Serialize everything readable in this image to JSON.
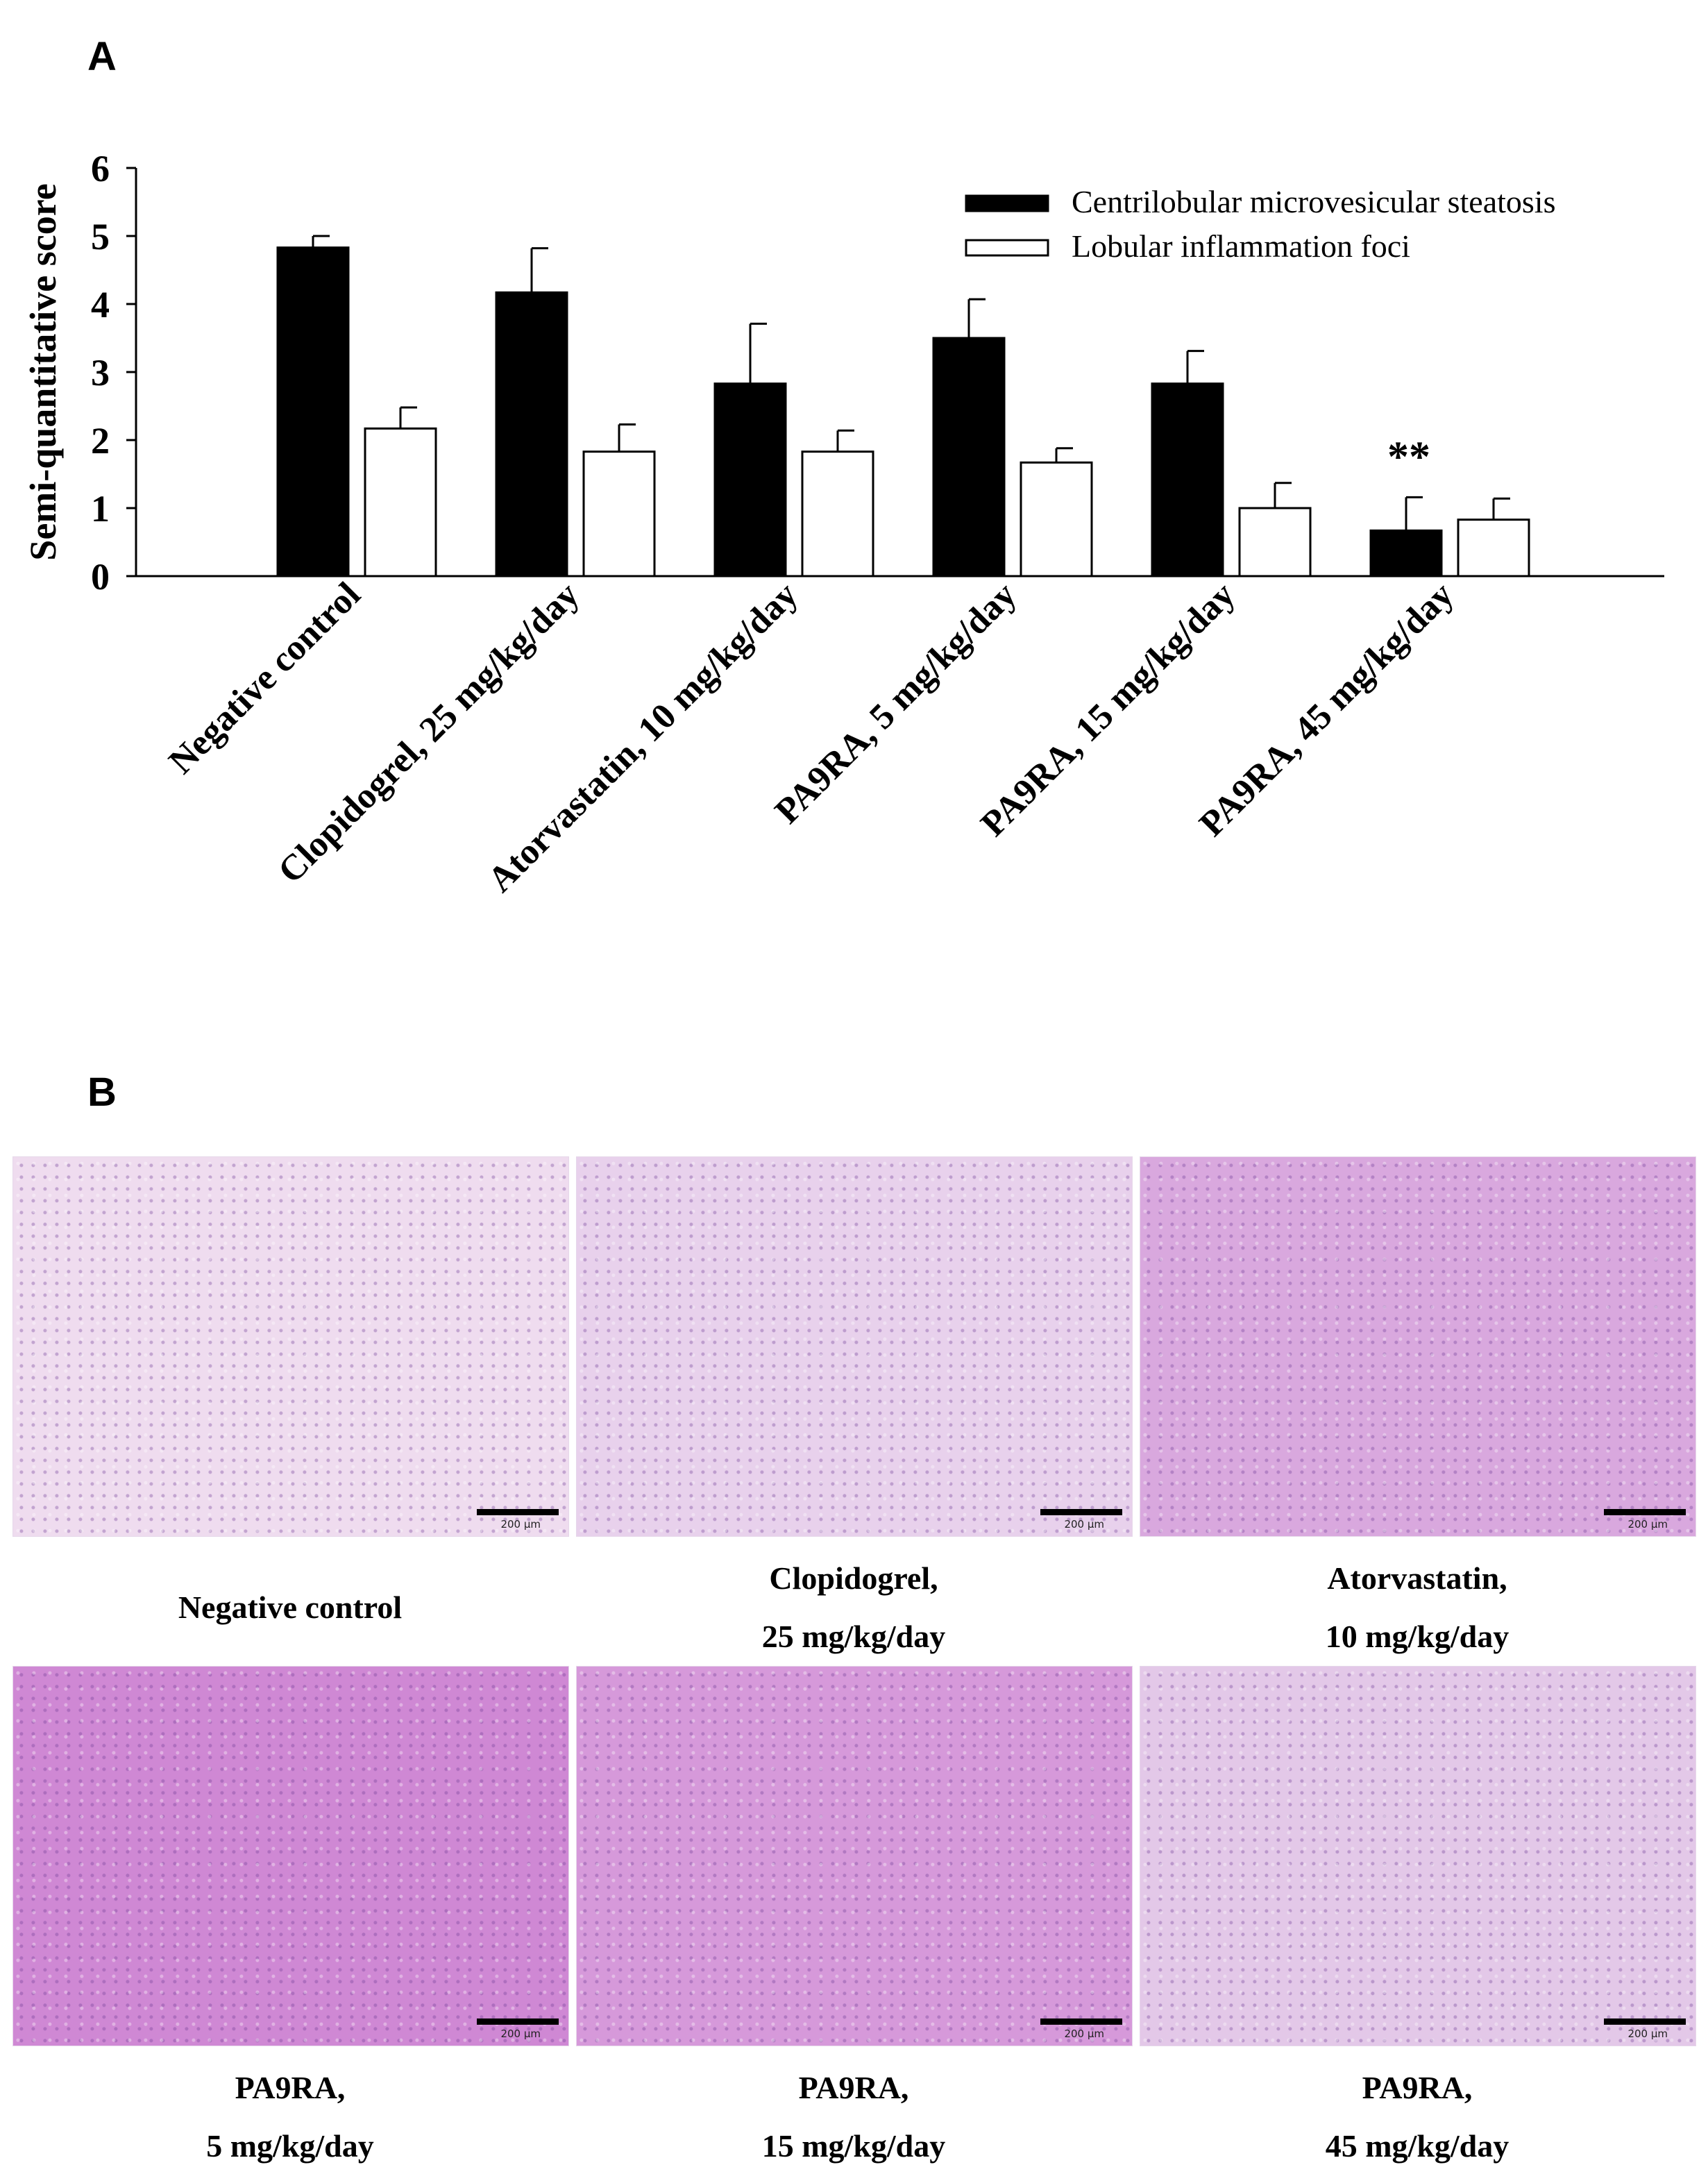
{
  "panels": {
    "a_label": "A",
    "b_label": "B"
  },
  "chart_data": {
    "type": "bar",
    "title": "",
    "ylabel": "Semi-quantitative  score",
    "xlabel": "",
    "ylim": [
      0,
      6
    ],
    "yticks": [
      0,
      1,
      2,
      3,
      4,
      5,
      6
    ],
    "legend_position": "top-right",
    "categories": [
      "Negative control",
      "Clopidogrel, 25 mg/kg/day",
      "Atorvastatin, 10 mg/kg/day",
      "PA9RA, 5 mg/kg/day",
      "PA9RA, 15 mg/kg/day",
      "PA9RA, 45 mg/kg/day"
    ],
    "series": [
      {
        "name": "Centrilobular microvesicular steatosis",
        "color": "#000000",
        "values": [
          4.83,
          4.17,
          2.83,
          3.5,
          2.83,
          0.67
        ],
        "errors": [
          0.17,
          0.65,
          0.88,
          0.57,
          0.48,
          0.49
        ]
      },
      {
        "name": "Lobular inflammation foci",
        "color": "#ffffff",
        "values": [
          2.17,
          1.83,
          1.83,
          1.67,
          1.0,
          0.83
        ],
        "errors": [
          0.31,
          0.4,
          0.31,
          0.21,
          0.37,
          0.31
        ]
      }
    ],
    "annotations": [
      {
        "category_index": 5,
        "series_index": 0,
        "text": "**"
      }
    ]
  },
  "micrographs": [
    {
      "name": "Negative control",
      "caption_line1": "Negative control",
      "caption_line2": "",
      "scale": "200 µm",
      "color": "#efdcef"
    },
    {
      "name": "Clopidogrel",
      "caption_line1": "Clopidogrel,",
      "caption_line2": "25 mg/kg/day",
      "scale": "200 µm",
      "color": "#e8d1ec"
    },
    {
      "name": "Atorvastatin",
      "caption_line1": "Atorvastatin,",
      "caption_line2": "10 mg/kg/day",
      "scale": "200 µm",
      "color": "#d9a8de"
    },
    {
      "name": "PA9RA 5",
      "caption_line1": "PA9RA,",
      "caption_line2": "5 mg/kg/day",
      "scale": "200 µm",
      "color": "#cf88d4"
    },
    {
      "name": "PA9RA 15",
      "caption_line1": "PA9RA,",
      "caption_line2": "15 mg/kg/day",
      "scale": "200 µm",
      "color": "#d699da"
    },
    {
      "name": "PA9RA 45",
      "caption_line1": "PA9RA,",
      "caption_line2": "45 mg/kg/day",
      "scale": "200 µm",
      "color": "#e3c8e8"
    }
  ]
}
